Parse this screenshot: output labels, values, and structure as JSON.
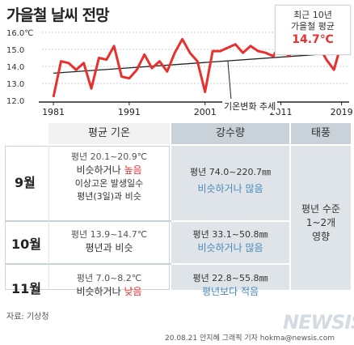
{
  "title": "가을철 날씨 전망",
  "colors": {
    "line": "#e8312f",
    "trend": "#222222",
    "tempAccent": "#e8312f",
    "rainAccent": "#4a89b8",
    "headerLeft": "#f2f2f2",
    "headerMid": "#c9d1d9",
    "bodyMid": "#dfe4e9"
  },
  "chart_data": {
    "type": "line",
    "title": "",
    "xlabel": "",
    "ylabel": "",
    "ylim": [
      12.0,
      16.0
    ],
    "yticks": [
      "16.0℃",
      "15.0",
      "14.0",
      "13.0",
      "12.0"
    ],
    "xticks": [
      "1981",
      "1991",
      "2001",
      "2011",
      "2019"
    ],
    "series": [
      {
        "name": "",
        "x": [
          1981,
          1982,
          1983,
          1984,
          1985,
          1986,
          1987,
          1988,
          1989,
          1990,
          1991,
          1992,
          1993,
          1994,
          1995,
          1996,
          1997,
          1998,
          1999,
          2000,
          2001,
          2002,
          2003,
          2004,
          2005,
          2006,
          2007,
          2008,
          2009,
          2010,
          2011,
          2012,
          2013,
          2014,
          2015,
          2016,
          2017,
          2018,
          2019
        ],
        "values": [
          12.2,
          14.3,
          14.2,
          13.8,
          14.2,
          12.7,
          14.5,
          14.4,
          15.2,
          13.4,
          13.3,
          13.8,
          14.7,
          13.9,
          14.3,
          13.7,
          14.8,
          15.6,
          14.8,
          14.3,
          12.5,
          14.9,
          14.9,
          15.1,
          15.3,
          14.8,
          15.2,
          14.9,
          14.8,
          14.6,
          15.4,
          14.6,
          15.1,
          15.0,
          15.3,
          15.2,
          14.4,
          13.8,
          15.4
        ]
      }
    ],
    "trend": {
      "start": [
        1981,
        13.6
      ],
      "end": [
        2019,
        14.8
      ]
    },
    "trend_label": "기온변화 추세",
    "callout": {
      "line1": "최근 10년",
      "line2": "가을철 평균",
      "value": "14.7℃"
    }
  },
  "table": {
    "headers": {
      "temp": "평균 기온",
      "rain": "강수량",
      "typhoon": "태풍"
    },
    "rows": [
      {
        "month": "9월",
        "temp": {
          "range": "평년 20.1~20.9℃",
          "outlook_a": "비슷하거나 ",
          "outlook_b": "높음",
          "extra1": "이상고온 발생일수",
          "extra2": "평년(3일)과 비슷"
        },
        "rain": {
          "range": "평년 74.0~220.7㎜",
          "outlook": "비슷하거나 많음"
        }
      },
      {
        "month": "10월",
        "temp": {
          "range": "평년 13.9~14.7℃",
          "outlook_a": "평년과 비슷",
          "outlook_b": ""
        },
        "rain": {
          "range": "평년 33.1~50.8㎜",
          "outlook": "비슷하거나 많음"
        }
      },
      {
        "month": "11월",
        "temp": {
          "range": "평년 7.0~8.2℃",
          "outlook_a": "비슷하거나 ",
          "outlook_b": "낮음"
        },
        "rain": {
          "range": "평년 22.8~55.8㎜",
          "outlook": "평년보다 적음"
        }
      }
    ],
    "typhoon": {
      "line1": "평년 수준",
      "line2": "1~2개",
      "line3": "영향"
    }
  },
  "source": "자료: 기상청",
  "credit": "20.08.21 안지혜 그래픽 기자 hokma@newsis.com",
  "logo": "NEWSIS"
}
